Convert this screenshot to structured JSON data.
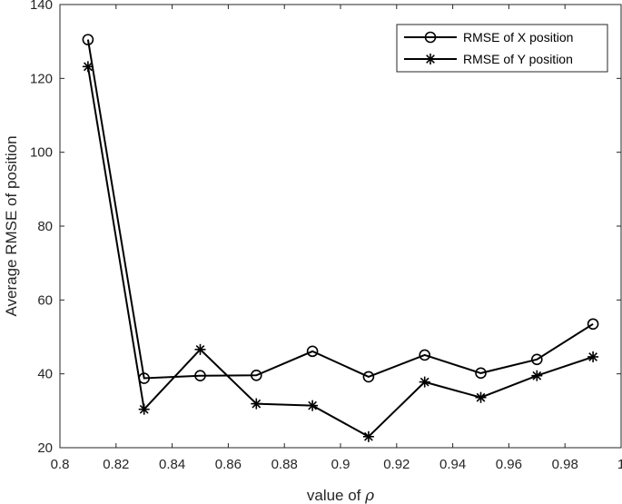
{
  "chart_data": {
    "type": "line",
    "x": [
      0.81,
      0.83,
      0.85,
      0.87,
      0.89,
      0.91,
      0.93,
      0.95,
      0.97,
      0.99
    ],
    "series": [
      {
        "name": "RMSE of X position",
        "marker": "circle",
        "values": [
          130.5,
          38.8,
          39.5,
          39.6,
          46.1,
          39.2,
          45.1,
          40.2,
          43.9,
          53.5
        ]
      },
      {
        "name": "RMSE of Y position",
        "marker": "asterisk",
        "values": [
          123.2,
          30.4,
          46.6,
          31.9,
          31.4,
          23.0,
          37.8,
          33.6,
          39.5,
          44.6
        ]
      }
    ],
    "xlabel": "value of ρ",
    "ylabel": "Average RMSE of position",
    "xlim": [
      0.8,
      1.0
    ],
    "ylim": [
      20,
      140
    ],
    "xticks": [
      0.8,
      0.82,
      0.84,
      0.86,
      0.88,
      0.9,
      0.92,
      0.94,
      0.96,
      0.98,
      1
    ],
    "xtick_labels": [
      "0.8",
      "0.82",
      "0.84",
      "0.86",
      "0.88",
      "0.9",
      "0.92",
      "0.94",
      "0.96",
      "0.98",
      "1"
    ],
    "yticks": [
      20,
      40,
      60,
      80,
      100,
      120,
      140
    ],
    "ytick_labels": [
      "20",
      "40",
      "60",
      "80",
      "100",
      "120",
      "140"
    ],
    "grid": false,
    "legend_position": "top-right",
    "colors": {
      "line": "#000000",
      "axis": "#262626"
    }
  }
}
